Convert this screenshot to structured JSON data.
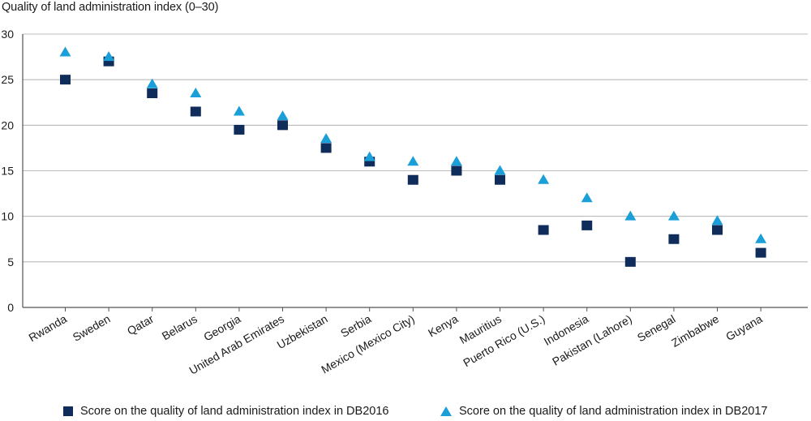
{
  "chart_data": {
    "type": "scatter",
    "title": "Quality of land administration index (0–30)",
    "categories": [
      "Rwanda",
      "Sweden",
      "Qatar",
      "Belarus",
      "Georgia",
      "United Arab Emirates",
      "Uzbekistan",
      "Serbia",
      "Mexico (Mexico City)",
      "Kenya",
      "Mauritius",
      "Puerto Rico (U.S.)",
      "Indonesia",
      "Pakistan (Lahore)",
      "Senegal",
      "Zimbabwe",
      "Guyana"
    ],
    "series": [
      {
        "name": "Score on the quality of land administration index in DB2016",
        "marker": "square",
        "color": "#0f2c5a",
        "values": [
          25,
          27,
          23.5,
          21.5,
          19.5,
          20,
          17.5,
          16,
          14,
          15,
          14,
          8.5,
          9,
          5,
          7.5,
          8.5,
          6
        ]
      },
      {
        "name": "Score on the quality of land administration index in DB2017",
        "marker": "triangle",
        "color": "#1b9fd8",
        "values": [
          28,
          27.5,
          24.5,
          23.5,
          21.5,
          21,
          18.5,
          16.5,
          16,
          16,
          15,
          14,
          12,
          10,
          10,
          9.5,
          7.5
        ]
      }
    ],
    "yticks": [
      0,
      5,
      10,
      15,
      20,
      25,
      30
    ],
    "ylim": [
      0,
      30
    ],
    "xlabel": "",
    "ylabel": "",
    "grid": true,
    "legend_position": "bottom"
  }
}
